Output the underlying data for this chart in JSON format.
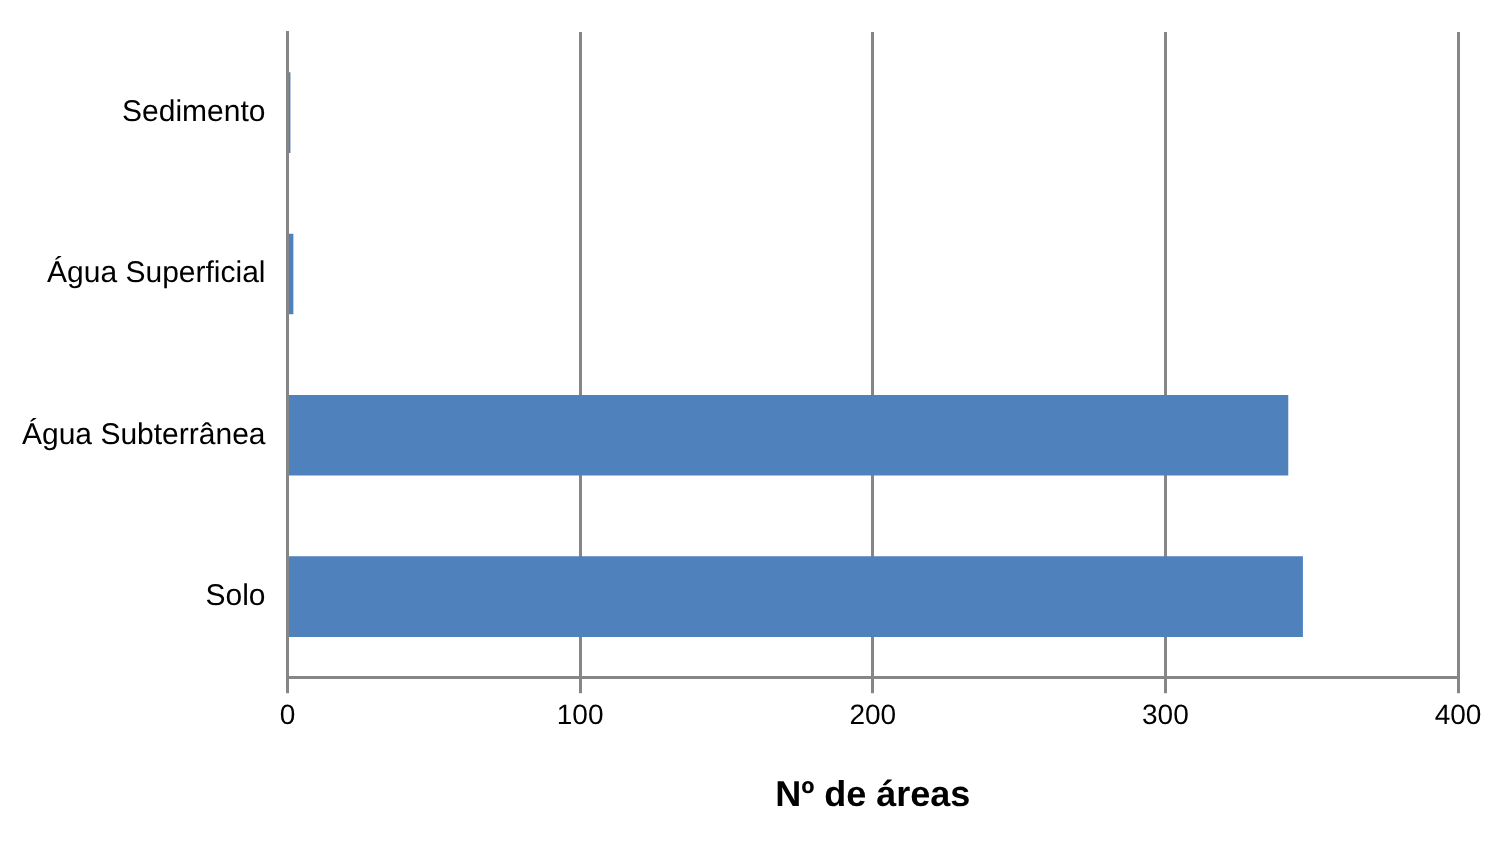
{
  "chart_data": {
    "type": "bar",
    "orientation": "horizontal",
    "xlabel": "Nº de áreas",
    "categories": [
      "Sedimento",
      "Água Superficial",
      "Água Subterrânea",
      "Solo"
    ],
    "values": [
      1,
      2,
      342,
      347
    ],
    "color": "#4f81bd",
    "xlim": [
      0,
      400
    ],
    "xticks": [
      0,
      100,
      200,
      300,
      400
    ],
    "grid": "x"
  }
}
